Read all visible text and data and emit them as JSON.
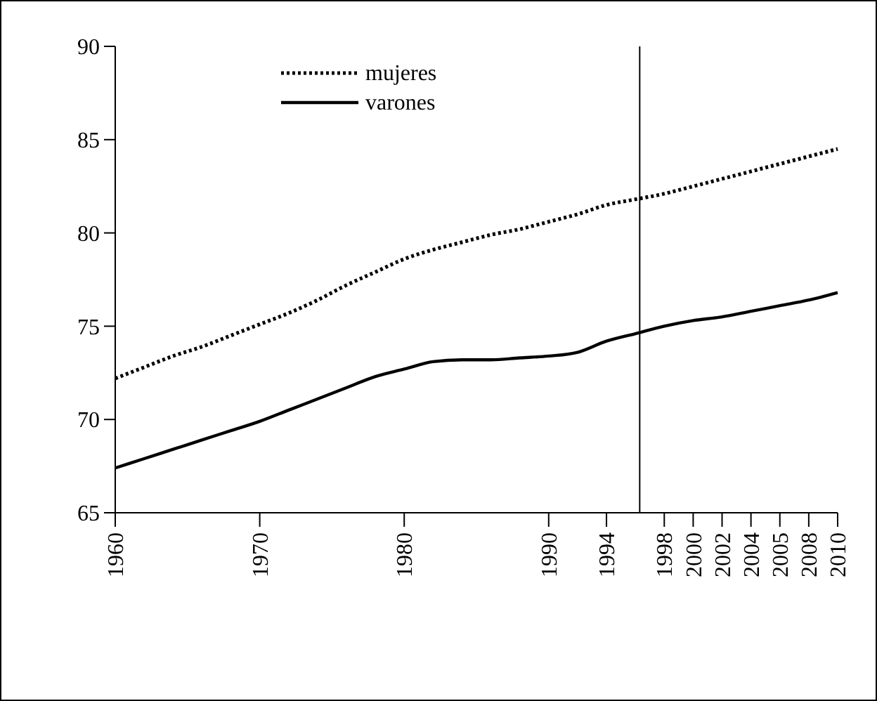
{
  "chart_data": {
    "type": "line",
    "categories": [
      "1960",
      null,
      null,
      null,
      null,
      "1970",
      null,
      null,
      null,
      null,
      "1980",
      null,
      null,
      null,
      null,
      "1990",
      null,
      "1994",
      null,
      "1998",
      "2000",
      "2002",
      "2004",
      "2005",
      "2008",
      "2010"
    ],
    "ylim": [
      65,
      90
    ],
    "yticks": [
      65,
      70,
      75,
      80,
      85,
      90
    ],
    "legend": "top",
    "grid": false,
    "series": [
      {
        "name": "mujeres",
        "color": "#000000",
        "line_style": "dotted",
        "values": [
          72.2,
          72.8,
          73.4,
          73.9,
          74.5,
          75.1,
          75.7,
          76.4,
          77.2,
          77.9,
          78.6,
          79.1,
          79.5,
          79.9,
          80.2,
          80.6,
          81.0,
          81.5,
          81.8,
          82.1,
          82.5,
          82.9,
          83.3,
          83.7,
          84.1,
          84.5
        ]
      },
      {
        "name": "varones",
        "color": "#000000",
        "line_style": "solid",
        "values": [
          67.4,
          67.9,
          68.4,
          68.9,
          69.4,
          69.9,
          70.5,
          71.1,
          71.7,
          72.3,
          72.7,
          73.1,
          73.2,
          73.2,
          73.3,
          73.4,
          73.6,
          74.2,
          74.6,
          75.0,
          75.3,
          75.5,
          75.8,
          76.1,
          76.4,
          76.8
        ]
      }
    ]
  }
}
